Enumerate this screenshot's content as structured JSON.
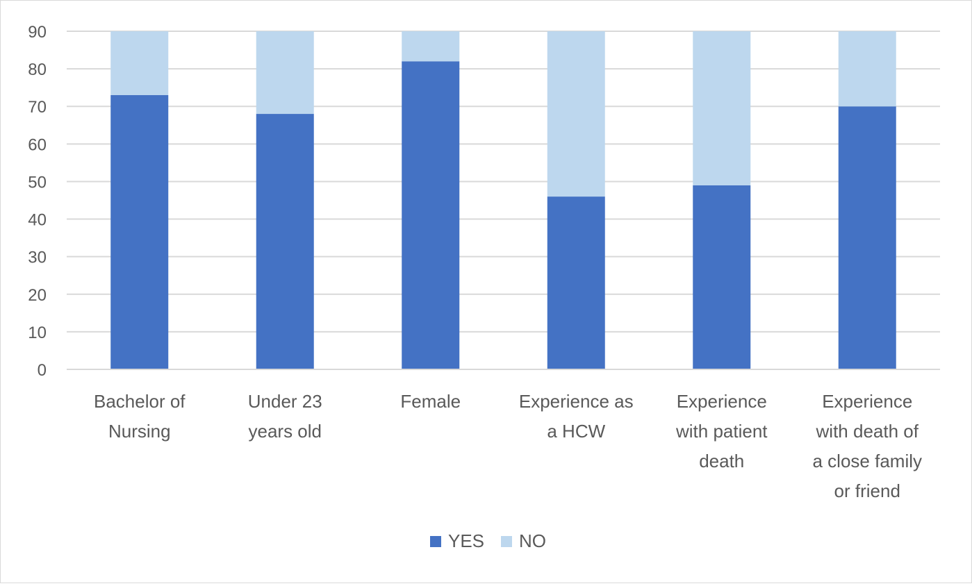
{
  "chart_data": {
    "type": "bar",
    "stacked": true,
    "title": "",
    "xlabel": "",
    "ylabel": "",
    "ylim": [
      0,
      90
    ],
    "yticks": [
      "0",
      "10",
      "20",
      "30",
      "40",
      "50",
      "60",
      "70",
      "80",
      "90"
    ],
    "grid": true,
    "legend_position": "bottom",
    "categories": [
      [
        "Bachelor of",
        "Nursing"
      ],
      [
        "Under 23",
        "years old"
      ],
      [
        "Female"
      ],
      [
        "Experience as",
        "a HCW"
      ],
      [
        "Experience",
        "with patient",
        "death"
      ],
      [
        "Experience",
        "with death of",
        "a close family",
        "or friend"
      ]
    ],
    "series": [
      {
        "name": "YES",
        "color": "#4472c4",
        "values": [
          73,
          68,
          82,
          46,
          49,
          70
        ]
      },
      {
        "name": "NO",
        "color": "#bdd7ee",
        "values": [
          17,
          22,
          8,
          44,
          41,
          20
        ]
      }
    ]
  }
}
